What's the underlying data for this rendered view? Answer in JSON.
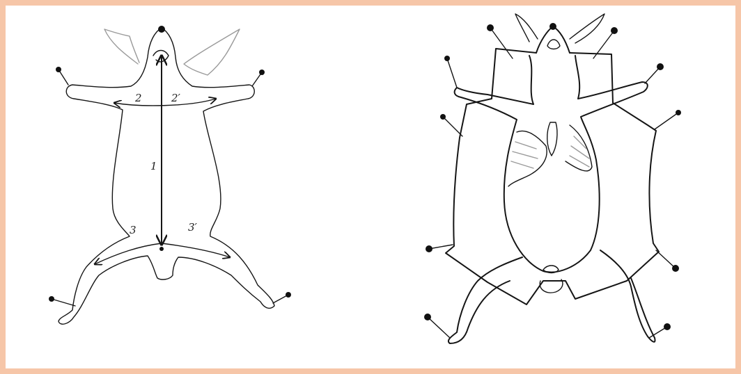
{
  "labels": {
    "midline": "1",
    "left_front": "2",
    "right_front": "2′",
    "left_hind": "3",
    "right_hind": "3′"
  }
}
